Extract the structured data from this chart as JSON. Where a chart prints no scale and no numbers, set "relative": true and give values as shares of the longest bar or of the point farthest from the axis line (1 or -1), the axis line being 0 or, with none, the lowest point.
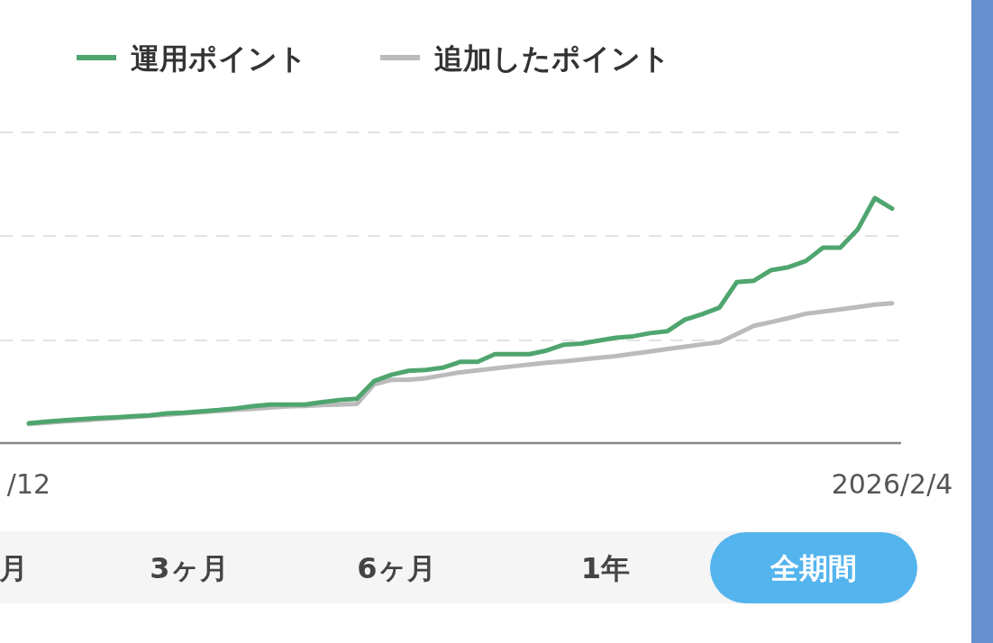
{
  "chart_data": {
    "type": "line",
    "relative": true,
    "ref_lines": [
      {
        "axis": "y",
        "value": 0.419,
        "color": "#e2e2e2",
        "line_style": "dashed"
      },
      {
        "axis": "y",
        "value": 0.846,
        "color": "#e2e2e2",
        "line_style": "dashed"
      },
      {
        "axis": "y",
        "value": 1.268,
        "color": "#e2e2e2",
        "line_style": "dashed"
      }
    ],
    "line_style": "solid",
    "marker": "none",
    "legend": "top left",
    "categories": [
      "/12",
      null,
      null,
      null,
      null,
      null,
      null,
      null,
      null,
      null,
      null,
      null,
      null,
      null,
      null,
      null,
      null,
      null,
      null,
      null,
      null,
      null,
      null,
      null,
      null,
      null,
      null,
      null,
      null,
      null,
      null,
      null,
      null,
      null,
      null,
      null,
      null,
      null,
      null,
      null,
      null,
      null,
      null,
      null,
      null,
      null,
      null,
      null,
      null,
      null,
      "2026/2/4"
    ],
    "series": [
      {
        "name": "運用ポイント",
        "color": "#4fa56f",
        "values": [
          0.081,
          0.087,
          0.093,
          0.097,
          0.102,
          0.105,
          0.109,
          0.113,
          0.121,
          0.124,
          0.13,
          0.135,
          0.142,
          0.151,
          0.157,
          0.157,
          0.157,
          0.167,
          0.176,
          0.181,
          0.253,
          0.279,
          0.295,
          0.299,
          0.308,
          0.332,
          0.332,
          0.363,
          0.363,
          0.363,
          0.378,
          0.402,
          0.406,
          0.418,
          0.43,
          0.436,
          0.449,
          0.457,
          0.504,
          0.526,
          0.553,
          0.657,
          0.663,
          0.706,
          0.718,
          0.743,
          0.798,
          0.798,
          0.871,
          1,
          0.957
        ]
      },
      {
        "name": "追加したポイント",
        "color": "#bbbbbb",
        "values": [
          0.078,
          0.083,
          0.088,
          0.092,
          0.097,
          0.102,
          0.107,
          0.111,
          0.116,
          0.121,
          0.126,
          0.131,
          0.136,
          0.14,
          0.145,
          0.15,
          0.152,
          0.155,
          0.157,
          0.16,
          0.24,
          0.258,
          0.258,
          0.265,
          0.277,
          0.289,
          0.297,
          0.305,
          0.313,
          0.321,
          0.328,
          0.334,
          0.341,
          0.348,
          0.355,
          0.365,
          0.374,
          0.384,
          0.393,
          0.403,
          0.412,
          0.445,
          0.479,
          0.494,
          0.51,
          0.528,
          0.537,
          0.546,
          0.555,
          0.565,
          0.571
        ]
      }
    ],
    "annotations": [
      "月",
      "3ヶ月",
      "6ヶ月",
      "1年",
      "全期間"
    ]
  }
}
